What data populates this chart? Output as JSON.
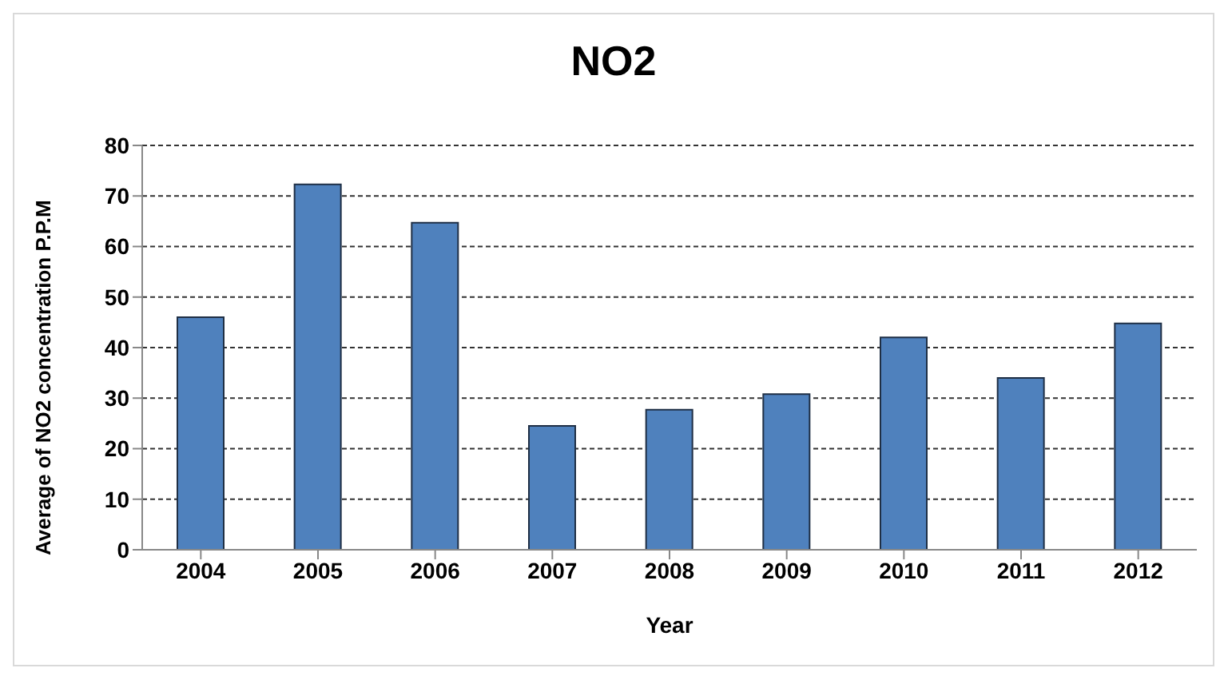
{
  "chart_data": {
    "type": "bar",
    "title": "NO2",
    "xlabel": "Year",
    "ylabel": "Average of NO2 concentration P.P.M",
    "categories": [
      "2004",
      "2005",
      "2006",
      "2007",
      "2008",
      "2009",
      "2010",
      "2011",
      "2012"
    ],
    "values": [
      46,
      72.3,
      64.7,
      24.5,
      27.7,
      30.8,
      42,
      34,
      44.8
    ],
    "color": "#4f81bd",
    "ylim": [
      0,
      80
    ],
    "yticks": [
      0,
      10,
      20,
      30,
      40,
      50,
      60,
      70,
      80
    ],
    "grid": "y",
    "legend": false
  }
}
